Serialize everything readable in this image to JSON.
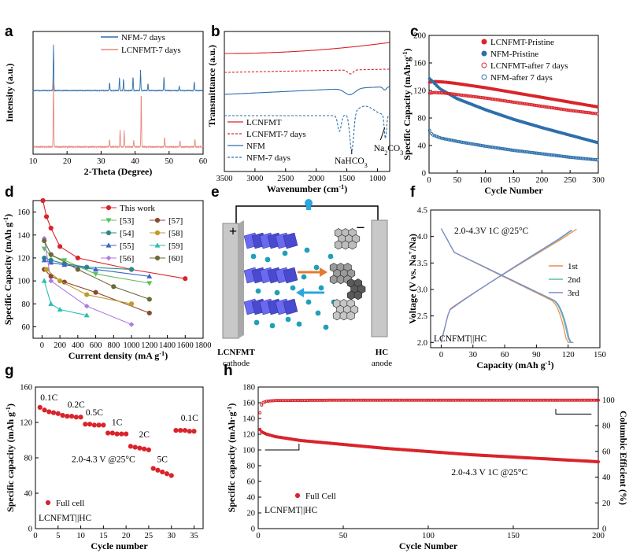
{
  "chart_data": [
    {
      "id": "a",
      "type": "line",
      "panel_label": "a",
      "xlabel": "2-Theta (Degree)",
      "ylabel": "Intensity (a.u.)",
      "xlim": [
        10,
        60
      ],
      "xticks": [
        10,
        20,
        30,
        40,
        50,
        60
      ],
      "legend_position": "top-right",
      "series": [
        {
          "name": "NFM-7 days",
          "color": "#2e6fab",
          "peaks": [
            [
              16.0,
              1.0
            ],
            [
              32.5,
              0.18
            ],
            [
              35.4,
              0.3
            ],
            [
              36.6,
              0.25
            ],
            [
              39.4,
              0.3
            ],
            [
              41.6,
              0.45
            ],
            [
              43.8,
              0.15
            ],
            [
              48.5,
              0.3
            ],
            [
              53.0,
              0.1
            ],
            [
              57.4,
              0.2
            ]
          ]
        },
        {
          "name": "LCNFMT-7 days",
          "color": "#e8887f",
          "peaks": [
            [
              16.0,
              1.0
            ],
            [
              32.5,
              0.12
            ],
            [
              35.6,
              0.25
            ],
            [
              36.8,
              0.25
            ],
            [
              39.6,
              0.1
            ],
            [
              41.8,
              0.85
            ],
            [
              48.7,
              0.15
            ],
            [
              53.2,
              0.1
            ],
            [
              57.6,
              0.12
            ]
          ]
        }
      ]
    },
    {
      "id": "b",
      "type": "line",
      "panel_label": "b",
      "xlabel": "Wavenumber (cm⁻¹)",
      "xlabel_main": "Wavenumber (cm",
      "xlabel_sup": "-1",
      "xlabel_end": ")",
      "ylabel": "Transmittance (a.u.)",
      "xlim": [
        3500,
        800
      ],
      "xticks": [
        3500,
        3000,
        2500,
        2000,
        1500,
        1000
      ],
      "legend_position": "bottom-left",
      "series": [
        {
          "name": "LCNFMT",
          "color": "#d9242b",
          "dash": false
        },
        {
          "name": "LCNFMT-7 days",
          "color": "#d9242b",
          "dash": true
        },
        {
          "name": "NFM",
          "color": "#2e6fab",
          "dash": false
        },
        {
          "name": "NFM-7 days",
          "color": "#2e6fab",
          "dash": true
        }
      ],
      "annotations": [
        {
          "text": "NaHCO",
          "sub": "3"
        },
        {
          "text": "Na",
          "sub": "2",
          "text2": "CO",
          "sub2": "3"
        }
      ]
    },
    {
      "id": "c",
      "type": "scatter",
      "panel_label": "c",
      "xlabel": "Cycle Number",
      "ylabel": "Specific Capacity (mAh·g⁻¹)",
      "ylabel_main": "Specific Capacity (mAh·g",
      "ylabel_sup": "-1",
      "ylabel_end": ")",
      "xlim": [
        0,
        300
      ],
      "ylim": [
        0,
        200
      ],
      "xticks": [
        0,
        50,
        100,
        150,
        200,
        250,
        300
      ],
      "yticks": [
        0,
        40,
        80,
        120,
        160,
        200
      ],
      "legend_position": "top-right",
      "series": [
        {
          "name": "LCNFMT-Pristine",
          "color": "#d9242b",
          "marker": "filled",
          "x": [
            1,
            10,
            30,
            50,
            100,
            150,
            200,
            250,
            300
          ],
          "y": [
            132,
            133,
            132,
            130,
            124,
            117,
            110,
            103,
            96
          ]
        },
        {
          "name": "NFM-Pristine",
          "color": "#2e6fab",
          "marker": "filled",
          "x": [
            1,
            5,
            20,
            50,
            100,
            150,
            200,
            250,
            300
          ],
          "y": [
            137,
            134,
            122,
            108,
            92,
            78,
            66,
            55,
            44
          ]
        },
        {
          "name": "LCNFMT-after 7 days",
          "color": "#d9242b",
          "marker": "open",
          "x": [
            1,
            10,
            30,
            50,
            100,
            150,
            200,
            250,
            300
          ],
          "y": [
            116,
            117,
            116,
            114,
            109,
            103,
            97,
            91,
            86
          ]
        },
        {
          "name": "NFM-after 7 days",
          "color": "#2e6fab",
          "marker": "open",
          "x": [
            1,
            5,
            20,
            50,
            100,
            150,
            200,
            250,
            300
          ],
          "y": [
            62,
            56,
            51,
            46,
            39,
            33,
            28,
            23,
            19
          ]
        }
      ]
    },
    {
      "id": "d",
      "type": "line",
      "panel_label": "d",
      "xlabel": "Current density (mA g⁻¹)",
      "xlabel_main": "Current density (mA g",
      "xlabel_sup": "-1",
      "xlabel_end": ")",
      "ylabel": "Specific Capacity (mAh g⁻¹)",
      "ylabel_main": "Specific Capacity (mAh g",
      "ylabel_sup": "-1",
      "ylabel_end": ")",
      "xlim": [
        -100,
        1800
      ],
      "ylim": [
        50,
        170
      ],
      "xticks": [
        0,
        200,
        400,
        600,
        800,
        1000,
        1200,
        1400,
        1600,
        1800
      ],
      "yticks": [
        60,
        80,
        100,
        120,
        140,
        160
      ],
      "legend_position": "top-right",
      "series": [
        {
          "name": "This work",
          "color": "#d9242b",
          "marker": "circle",
          "x": [
            10,
            50,
            100,
            200,
            400,
            1000,
            1600
          ],
          "y": [
            170,
            156,
            146,
            130,
            120,
            110,
            102
          ]
        },
        {
          "name": "[53]",
          "color": "#5bbf5b",
          "marker": "triangle-down",
          "x": [
            25,
            100,
            250,
            600,
            1200
          ],
          "y": [
            128,
            122,
            118,
            106,
            98
          ]
        },
        {
          "name": "[54]",
          "color": "#2a8a8a",
          "marker": "circle",
          "x": [
            25,
            100,
            250,
            500,
            1000
          ],
          "y": [
            120,
            118,
            115,
            112,
            110
          ]
        },
        {
          "name": "[55]",
          "color": "#3a64c8",
          "marker": "triangle-up",
          "x": [
            25,
            100,
            250,
            600,
            1200
          ],
          "y": [
            118,
            116,
            114,
            110,
            104
          ]
        },
        {
          "name": "[56]",
          "color": "#b07ae0",
          "marker": "diamond",
          "x": [
            25,
            100,
            500,
            1000
          ],
          "y": [
            137,
            100,
            78,
            62
          ]
        },
        {
          "name": "[57]",
          "color": "#8b4a2f",
          "marker": "circle",
          "x": [
            25,
            100,
            250,
            600,
            1200
          ],
          "y": [
            110,
            104,
            99,
            90,
            72
          ]
        },
        {
          "name": "[58]",
          "color": "#c09a2a",
          "marker": "circle",
          "x": [
            50,
            200,
            500,
            1000
          ],
          "y": [
            110,
            100,
            88,
            80
          ]
        },
        {
          "name": "[59]",
          "color": "#2bbfb0",
          "marker": "triangle-up",
          "x": [
            25,
            100,
            200,
            500
          ],
          "y": [
            100,
            80,
            75,
            70
          ]
        },
        {
          "name": "[60]",
          "color": "#6a6a3a",
          "marker": "circle",
          "x": [
            25,
            100,
            400,
            800,
            1200
          ],
          "y": [
            135,
            123,
            110,
            95,
            84
          ]
        }
      ]
    },
    {
      "id": "e",
      "type": "diagram",
      "panel_label": "e",
      "labels": {
        "plus": "+",
        "minus": "−",
        "left_title": "LCNFMT",
        "left_sub": "cathode",
        "right_title": "HC",
        "right_sub": "anode"
      }
    },
    {
      "id": "f",
      "type": "line",
      "panel_label": "f",
      "xlabel": "Capacity (mAh g⁻¹)",
      "xlabel_main": "Capacity (mAh g",
      "xlabel_sup": "-1",
      "xlabel_end": ")",
      "ylabel": "Voltage (V vs. Na⁺/Na)",
      "ylabel_main": "Voltage (V vs. Na",
      "ylabel_sup": "+",
      "ylabel_end": "/Na)",
      "xlim": [
        -10,
        150
      ],
      "ylim": [
        1.9,
        4.5
      ],
      "xticks": [
        0,
        30,
        60,
        90,
        120,
        150
      ],
      "yticks": [
        2.0,
        2.5,
        3.0,
        3.5,
        4.0,
        4.5
      ],
      "annotation": "2.0-4.3V 1C @25°C",
      "cell_label": "LCNFMT||HC",
      "legend_position": "right",
      "series": [
        {
          "name": "1st",
          "color": "#ef8a4a",
          "charge_capacity": 128,
          "discharge_capacity": 122
        },
        {
          "name": "2nd",
          "color": "#5bbfa5",
          "charge_capacity": 124,
          "discharge_capacity": 124
        },
        {
          "name": "3rd",
          "color": "#7a8ad6",
          "charge_capacity": 123,
          "discharge_capacity": 125
        }
      ]
    },
    {
      "id": "g",
      "type": "scatter",
      "panel_label": "g",
      "xlabel": "Cycle number",
      "ylabel": "Specific capacity (mAh g⁻¹)",
      "ylabel_main": "Specific capacity (mAh g",
      "ylabel_sup": "-1",
      "ylabel_end": ")",
      "xlim": [
        0,
        37
      ],
      "ylim": [
        0,
        160
      ],
      "xticks": [
        0,
        5,
        10,
        15,
        20,
        25,
        30,
        35
      ],
      "yticks": [
        0,
        40,
        80,
        120,
        160
      ],
      "legend_label": "Full cell",
      "cell_label": "LCNFMT||HC",
      "annotation": "2.0-4.3 V @25°C",
      "rate_labels": [
        "0.1C",
        "0.2C",
        "0.5C",
        "1C",
        "2C",
        "5C",
        "0.1C"
      ],
      "series": [
        {
          "name": "Full cell",
          "color": "#d9242b",
          "x": [
            1,
            2,
            3,
            4,
            5,
            6,
            7,
            8,
            9,
            10,
            11,
            12,
            13,
            14,
            15,
            16,
            17,
            18,
            19,
            20,
            21,
            22,
            23,
            24,
            25,
            26,
            27,
            28,
            29,
            30,
            31,
            32,
            33,
            34,
            35
          ],
          "y": [
            137,
            134,
            132,
            131,
            130,
            128,
            127,
            127,
            126,
            126,
            118,
            118,
            117,
            117,
            117,
            108,
            108,
            107,
            107,
            107,
            93,
            92,
            91,
            90,
            89,
            68,
            66,
            64,
            62,
            60,
            111,
            111,
            111,
            110,
            110
          ]
        }
      ]
    },
    {
      "id": "h",
      "type": "scatter",
      "panel_label": "h",
      "xlabel": "Cycle Number",
      "ylabel": "Specific capacity (mAh·g⁻¹)",
      "ylabel_main": "Specific capacity (mAh·g",
      "ylabel_sup": "-1",
      "ylabel_end": ")",
      "y2label": "Columbic Efficient (%)",
      "xlim": [
        0,
        200
      ],
      "ylim": [
        0,
        180
      ],
      "y2lim": [
        0,
        110
      ],
      "xticks": [
        0,
        50,
        100,
        150,
        200
      ],
      "yticks": [
        0,
        20,
        40,
        60,
        80,
        100,
        120,
        140,
        160,
        180
      ],
      "y2ticks": [
        0,
        20,
        40,
        60,
        80,
        100
      ],
      "legend_label": "Full Cell",
      "cell_label": "LCNFMT||HC",
      "annotation": "2.0-4.3 V 1C @25°C",
      "series": [
        {
          "name": "capacity",
          "axis": "left",
          "color": "#d9242b",
          "x": [
            1,
            2,
            5,
            10,
            25,
            50,
            75,
            100,
            125,
            150,
            175,
            200
          ],
          "y": [
            126,
            123,
            120,
            117,
            112,
            107,
            102,
            98,
            94,
            91,
            88,
            85
          ]
        },
        {
          "name": "efficiency",
          "axis": "right",
          "color": "#d9242b",
          "x": [
            1,
            2,
            3,
            5,
            10,
            50,
            100,
            150,
            200
          ],
          "y": [
            90,
            96,
            98,
            99,
            99.5,
            99.8,
            99.8,
            99.8,
            99.8
          ]
        }
      ]
    }
  ]
}
